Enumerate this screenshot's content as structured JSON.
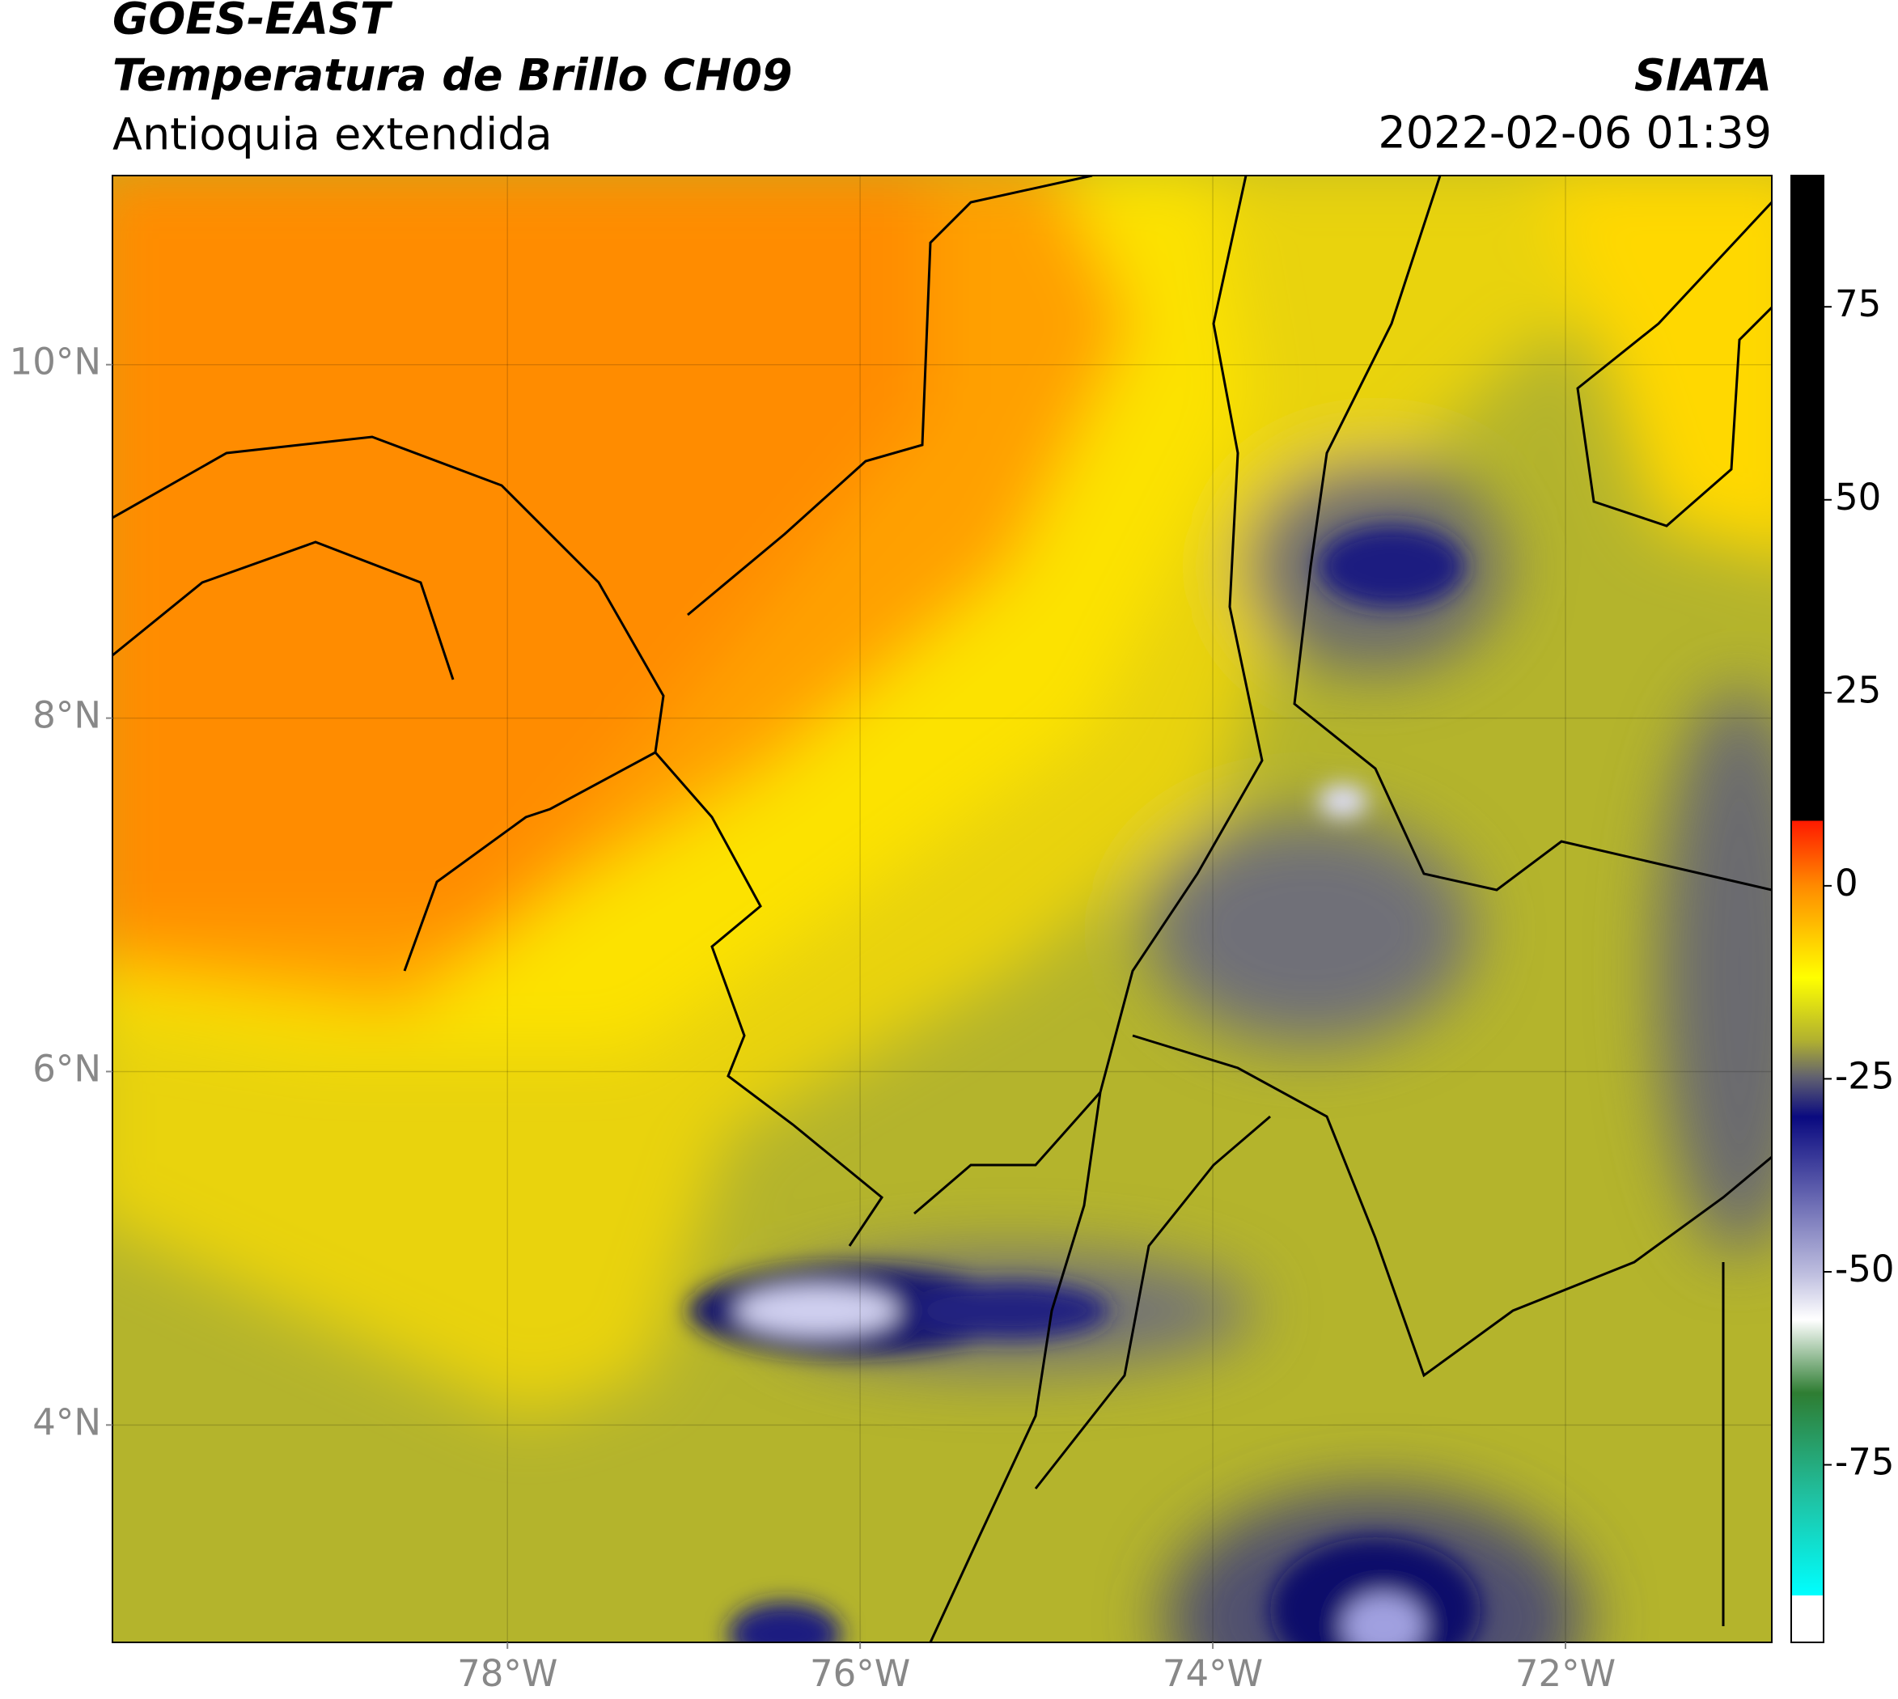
{
  "header": {
    "title": "GOES-EAST",
    "subtitle": "Temperatura de Brillo CH09",
    "region": "Antioquia extendida",
    "agency": "SIATA",
    "datetime": "2022-02-06 01:39"
  },
  "map": {
    "lonlim": [
      -80.24,
      -70.83
    ],
    "latlim": [
      2.77,
      11.07
    ],
    "grid": true,
    "lonticks": [
      {
        "value": -78,
        "label": "78°W"
      },
      {
        "value": -76,
        "label": "76°W"
      },
      {
        "value": -74,
        "label": "74°W"
      },
      {
        "value": -72,
        "label": "72°W"
      }
    ],
    "latticks": [
      {
        "value": 10,
        "label": "10°N"
      },
      {
        "value": 8,
        "label": "8°N"
      },
      {
        "value": 6,
        "label": "6°N"
      },
      {
        "value": 4,
        "label": "4°N"
      }
    ]
  },
  "colorbar": {
    "lim": [
      -98,
      92
    ],
    "ticks": [
      -75,
      -50,
      -25,
      0,
      25,
      50,
      75
    ]
  }
}
